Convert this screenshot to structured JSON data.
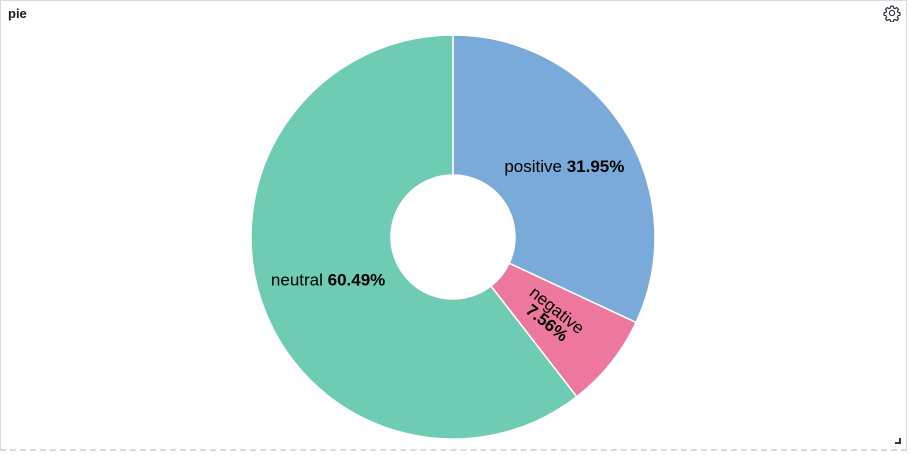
{
  "panel": {
    "title": "pie"
  },
  "icons": {
    "settings": "gear-icon",
    "resize": "resize-handle-icon"
  },
  "chart_data": {
    "type": "pie",
    "subtype": "donut",
    "categories": [
      "positive",
      "negative",
      "neutral"
    ],
    "values": [
      31.95,
      7.56,
      60.49
    ],
    "labels": [
      "31.95%",
      "7.56%",
      "60.49%"
    ],
    "colors": [
      "#79aad9",
      "#ee789d",
      "#6dccb1"
    ],
    "start_angle": "top",
    "direction": "clockwise",
    "title": "",
    "legend": "none"
  }
}
